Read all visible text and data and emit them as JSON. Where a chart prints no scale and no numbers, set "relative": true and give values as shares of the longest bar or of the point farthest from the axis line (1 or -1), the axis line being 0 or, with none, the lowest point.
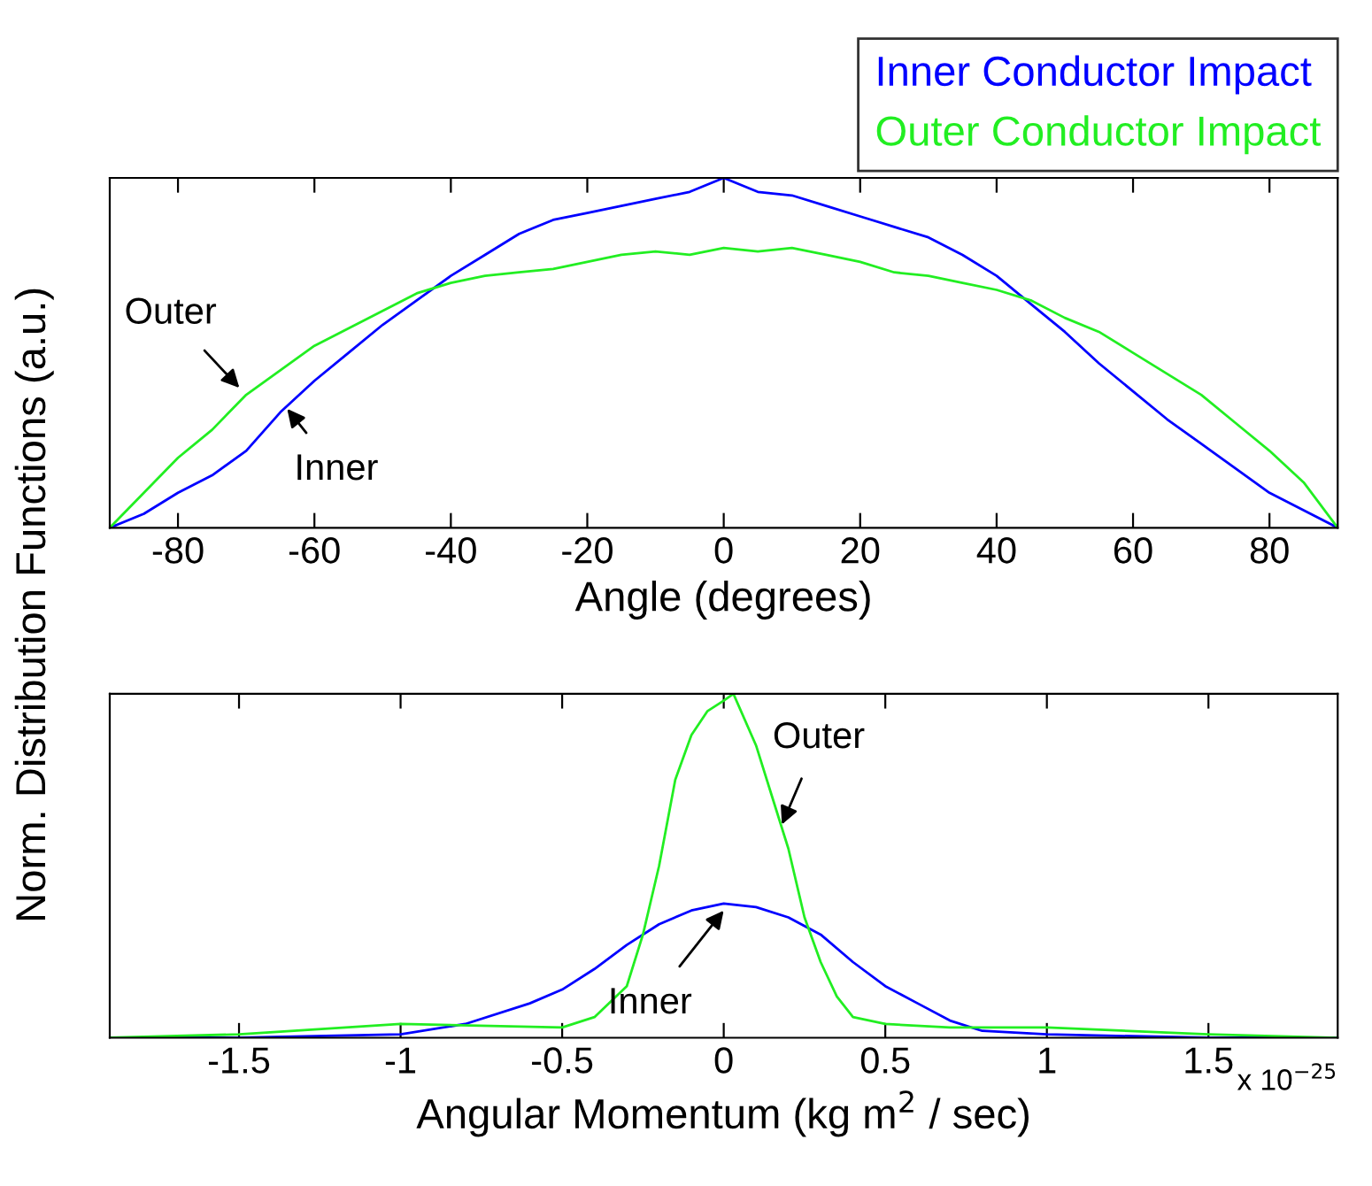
{
  "chart_data": [
    {
      "type": "line",
      "relative": true,
      "xlabel": "Angle (degrees)",
      "ylabel": "Norm. Distribution Functions (a.u.)",
      "xlim": [
        -90,
        90
      ],
      "xticks": [
        -80,
        -60,
        -40,
        -20,
        0,
        20,
        40,
        60,
        80
      ],
      "tick_labels": "x",
      "legend": "top right",
      "grid": false,
      "series": [
        {
          "name": "Inner Conductor Impact",
          "color": "#0000ff",
          "x": [
            -90,
            -85,
            -80,
            -75,
            -70,
            -65,
            -60,
            -55,
            -50,
            -45,
            -40,
            -35,
            -30,
            -25,
            -20,
            -15,
            -10,
            -5,
            0,
            5,
            10,
            15,
            20,
            25,
            30,
            35,
            40,
            45,
            50,
            55,
            60,
            65,
            70,
            75,
            80,
            85,
            90
          ],
          "values": [
            0,
            0.04,
            0.1,
            0.15,
            0.22,
            0.33,
            0.42,
            0.5,
            0.58,
            0.65,
            0.72,
            0.78,
            0.84,
            0.88,
            0.9,
            0.92,
            0.94,
            0.96,
            1,
            0.96,
            0.95,
            0.92,
            0.89,
            0.86,
            0.83,
            0.78,
            0.72,
            0.64,
            0.56,
            0.47,
            0.39,
            0.31,
            0.24,
            0.17,
            0.1,
            0.05,
            0
          ]
        },
        {
          "name": "Outer Conductor Impact",
          "color": "#22ee22",
          "x": [
            -90,
            -85,
            -80,
            -75,
            -70,
            -65,
            -60,
            -55,
            -50,
            -45,
            -40,
            -35,
            -30,
            -25,
            -20,
            -15,
            -10,
            -5,
            0,
            5,
            10,
            15,
            20,
            25,
            30,
            35,
            40,
            45,
            50,
            55,
            60,
            65,
            70,
            75,
            80,
            85,
            90
          ],
          "values": [
            0,
            0.1,
            0.2,
            0.28,
            0.38,
            0.45,
            0.52,
            0.57,
            0.62,
            0.67,
            0.7,
            0.72,
            0.73,
            0.74,
            0.76,
            0.78,
            0.79,
            0.78,
            0.8,
            0.79,
            0.8,
            0.78,
            0.76,
            0.73,
            0.72,
            0.7,
            0.68,
            0.65,
            0.6,
            0.56,
            0.5,
            0.44,
            0.38,
            0.3,
            0.22,
            0.13,
            0
          ]
        }
      ],
      "annotations": [
        {
          "text": "Outer",
          "x": -71,
          "y": 0.4
        },
        {
          "text": "Inner",
          "x": -64,
          "y": 0.34
        }
      ]
    },
    {
      "type": "line",
      "relative": true,
      "xlabel": "Angular Momentum (kg m$^{2}$ / sec)",
      "xlim": [
        -1.9,
        1.9
      ],
      "xticks": [
        -1.5,
        -1,
        -0.5,
        0,
        0.5,
        1,
        1.5
      ],
      "tick_labels": "x",
      "grid": false,
      "series": [
        {
          "color": "#0000ff",
          "x": [
            -1.9,
            -1.5,
            -1,
            -0.8,
            -0.6,
            -0.5,
            -0.4,
            -0.3,
            -0.2,
            -0.1,
            0,
            0.1,
            0.2,
            0.3,
            0.4,
            0.5,
            0.6,
            0.7,
            0.8,
            1,
            1.5,
            1.9
          ],
          "values": [
            0,
            0,
            0.01,
            0.04,
            0.1,
            0.14,
            0.2,
            0.27,
            0.33,
            0.37,
            0.39,
            0.38,
            0.35,
            0.3,
            0.22,
            0.15,
            0.1,
            0.05,
            0.02,
            0.01,
            0,
            0
          ]
        },
        {
          "color": "#22ee22",
          "x": [
            -1.9,
            -1.5,
            -1,
            -0.5,
            -0.4,
            -0.3,
            -0.25,
            -0.2,
            -0.15,
            -0.1,
            -0.05,
            0,
            0.03,
            0.1,
            0.15,
            0.2,
            0.25,
            0.3,
            0.35,
            0.4,
            0.5,
            0.7,
            1,
            1.5,
            1.9
          ],
          "values": [
            0,
            0.01,
            0.04,
            0.03,
            0.06,
            0.15,
            0.3,
            0.5,
            0.75,
            0.88,
            0.95,
            0.98,
            1,
            0.85,
            0.7,
            0.55,
            0.35,
            0.22,
            0.12,
            0.06,
            0.04,
            0.03,
            0.03,
            0.01,
            0
          ]
        }
      ],
      "annotations": [
        {
          "text": "Outer",
          "x": 0.18,
          "y": 0.62
        },
        {
          "text": "Inner",
          "x": 0,
          "y": 0.37
        },
        "x 10$^{−25}$"
      ]
    }
  ]
}
